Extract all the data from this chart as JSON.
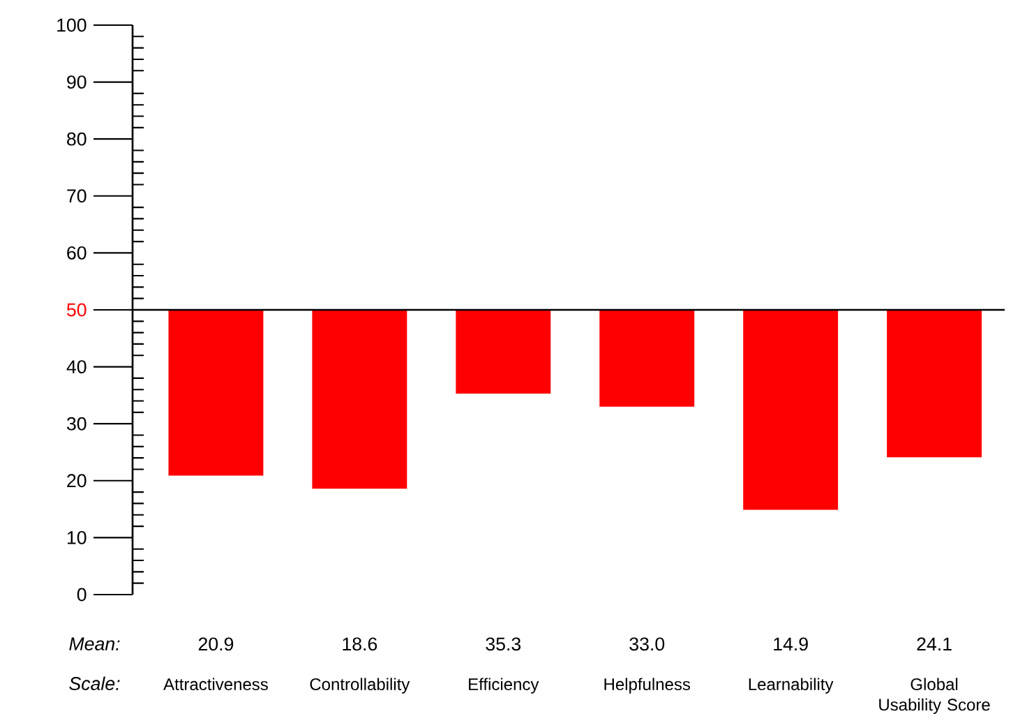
{
  "chart_data": {
    "type": "bar",
    "categories": [
      "Attractiveness",
      "Controllability",
      "Efficiency",
      "Helpfulness",
      "Learnability",
      "Global Usability Score"
    ],
    "base": [
      50,
      50,
      50,
      50,
      50,
      50
    ],
    "values": [
      -29.1,
      -31.4,
      -14.7,
      -17.0,
      -35.1,
      -25.9
    ],
    "value_labels": [
      "20.9",
      "18.6",
      "35.3",
      "33.0",
      "14.9",
      "24.1"
    ],
    "color": "#ff0000",
    "ylim": [
      0,
      100
    ],
    "yticks": [
      0,
      10,
      20,
      30,
      40,
      50,
      60,
      70,
      80,
      90,
      100
    ],
    "ref_lines": [
      {
        "axis": "y",
        "value": 50,
        "color": "#000000"
      }
    ],
    "annotations": [
      "Mean:",
      "Scale:"
    ]
  }
}
